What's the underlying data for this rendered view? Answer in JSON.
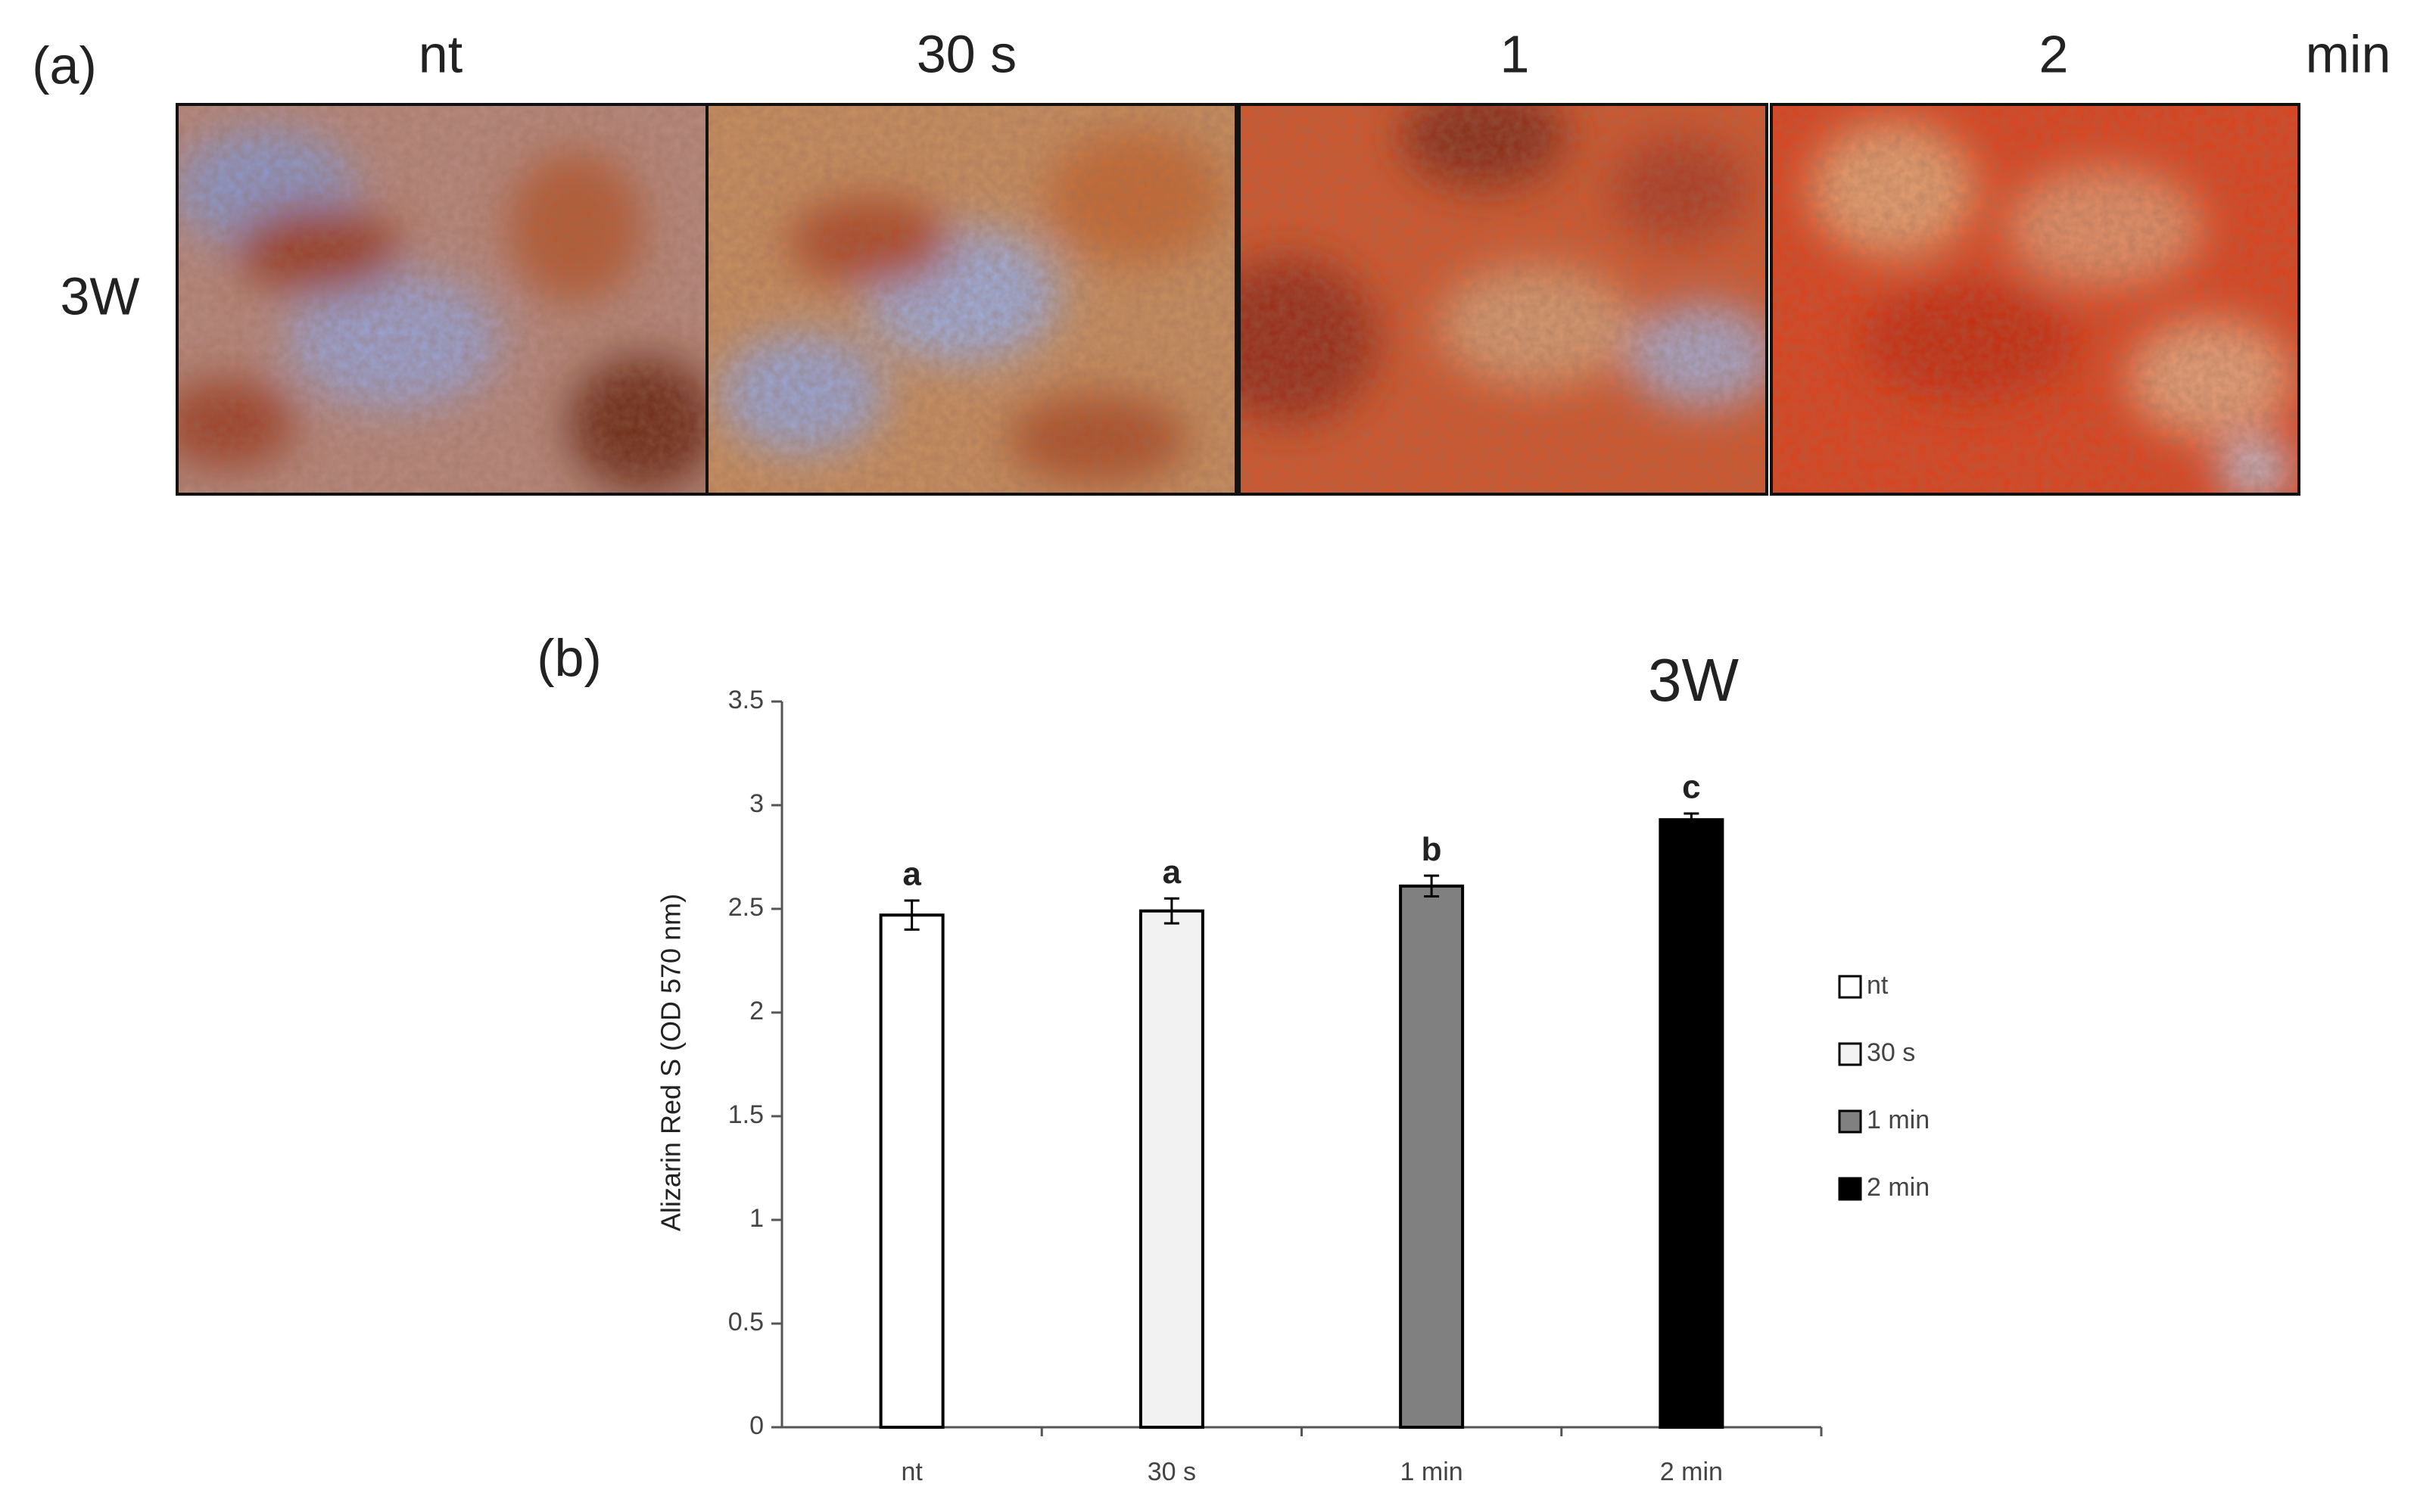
{
  "panel_a": {
    "label": "(a)",
    "columns": [
      "nt",
      "30 s",
      "1",
      "2"
    ],
    "unit": "min",
    "row": "3W"
  },
  "chart_data": {
    "type": "bar",
    "panel_label": "(b)",
    "title": "3W",
    "y_label": "Alizarin Red S (OD 570 nm)",
    "categories": [
      "nt",
      "30 s",
      "1 min",
      "2 min"
    ],
    "values": [
      2.47,
      2.49,
      2.61,
      2.93
    ],
    "errors": [
      0.07,
      0.06,
      0.05,
      0.03
    ],
    "annotations": [
      "a",
      "a",
      "b",
      "c"
    ],
    "colors": [
      "#ffffff",
      "#f2f2f2",
      "#808080",
      "#000000"
    ],
    "ylim": [
      0,
      3.5
    ],
    "yticks": [
      0,
      0.5,
      1,
      1.5,
      2,
      2.5,
      3,
      3.5
    ],
    "legend": "right"
  }
}
